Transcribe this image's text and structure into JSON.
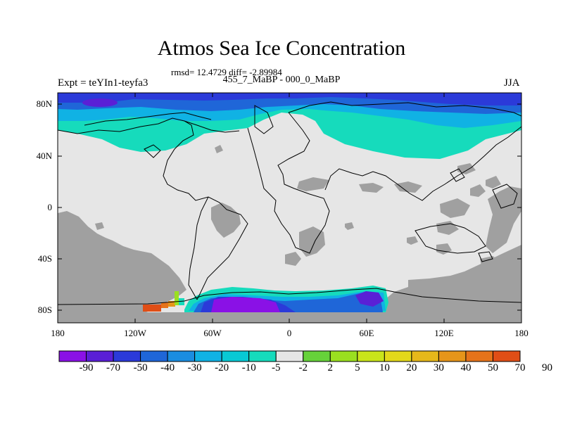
{
  "title": "Atmos Sea Ice Concentration",
  "stats": "rmsd= 12.4729 diff= -2.89984",
  "subtitle": "455_7_MaBP - 000_0_MaBP",
  "experiment": "Expt = teYIn1-teyfa3",
  "season": "JJA",
  "y_axis_labels": [
    "80N",
    "40N",
    "0",
    "40S",
    "80S"
  ],
  "x_axis_labels": [
    "180",
    "120W",
    "60W",
    "0",
    "60E",
    "120E",
    "180"
  ],
  "colorbar": {
    "labels": [
      "-90",
      "-70",
      "-50",
      "-40",
      "-30",
      "-20",
      "-10",
      "-5",
      "-2",
      "2",
      "5",
      "10",
      "20",
      "30",
      "40",
      "50",
      "70",
      "90"
    ],
    "colors": [
      "#8a11e6",
      "#5a1fd6",
      "#2b3ad9",
      "#1f66d8",
      "#1b8de0",
      "#10b2e4",
      "#08c9d4",
      "#16dbbc",
      "#e6e6e6",
      "#66d23a",
      "#9adf20",
      "#c9e41a",
      "#e3d81a",
      "#e6b81a",
      "#e6951a",
      "#e6731a",
      "#e04e16"
    ]
  },
  "map_colors": {
    "ocean_no_change": "#e6e6e6",
    "land_mask": "#a0a0a0",
    "coastline": "#000000",
    "strong_decrease": "#5a1fd6",
    "decrease": "#1f66d8",
    "moderate_decrease": "#10b2e4",
    "weak_decrease": "#16dbbc",
    "strong_increase": "#e04e16"
  }
}
